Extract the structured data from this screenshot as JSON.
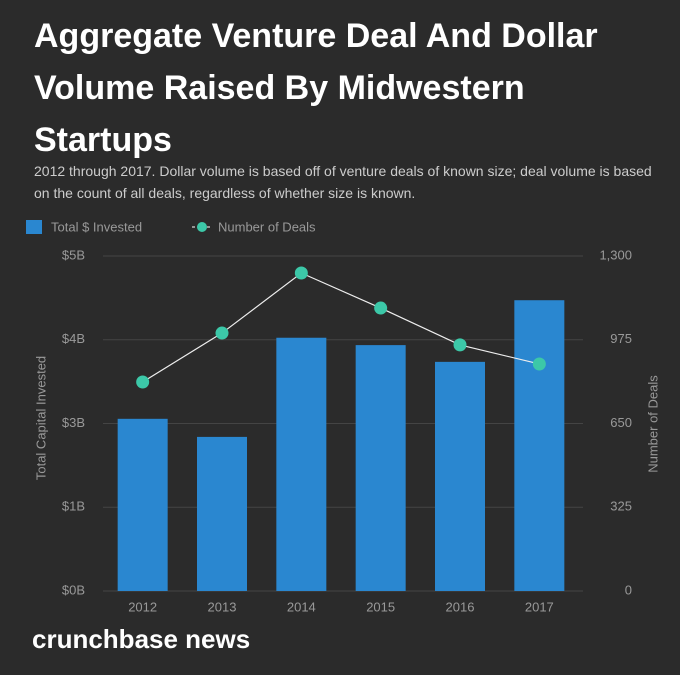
{
  "chart_data": {
    "type": "bar-line",
    "title": "Aggregate Venture Deal And Dollar Volume Raised By Midwestern Startups",
    "subtitle": "2012 through 2017. Dollar volume is based off of venture deals of known size; deal volume is based on the count of all deals, regardless of whether size is known.",
    "categories": [
      "2012",
      "2013",
      "2014",
      "2015",
      "2016",
      "2017"
    ],
    "series": [
      {
        "name": "Total $ Invested",
        "type": "bar",
        "color": "#2a87d0",
        "values": [
          2.57,
          2.3,
          3.78,
          3.67,
          3.42,
          4.34
        ]
      },
      {
        "name": "Number of Deals",
        "type": "line",
        "axis": "y2",
        "color": "#3cc8a8",
        "values": [
          811,
          1001,
          1234,
          1098,
          955,
          881
        ]
      }
    ],
    "ylabel": "Total Capital Invested",
    "y2label": "Number of Deals",
    "ylim": [
      0,
      5
    ],
    "yticks": [
      {
        "value": 0,
        "label": "$0B"
      },
      {
        "value": 1.25,
        "label": "$1B"
      },
      {
        "value": 2.5,
        "label": "$3B"
      },
      {
        "value": 3.75,
        "label": "$4B"
      },
      {
        "value": 5,
        "label": "$5B"
      }
    ],
    "y2lim": [
      0,
      1300
    ],
    "y2ticks": [
      0,
      325,
      {
        "value": 650,
        "label": "650"
      },
      {
        "value": 975,
        "label": "975"
      },
      {
        "value": 1300,
        "label": "1,300"
      }
    ],
    "grid": true,
    "source": "crunchbase news"
  }
}
